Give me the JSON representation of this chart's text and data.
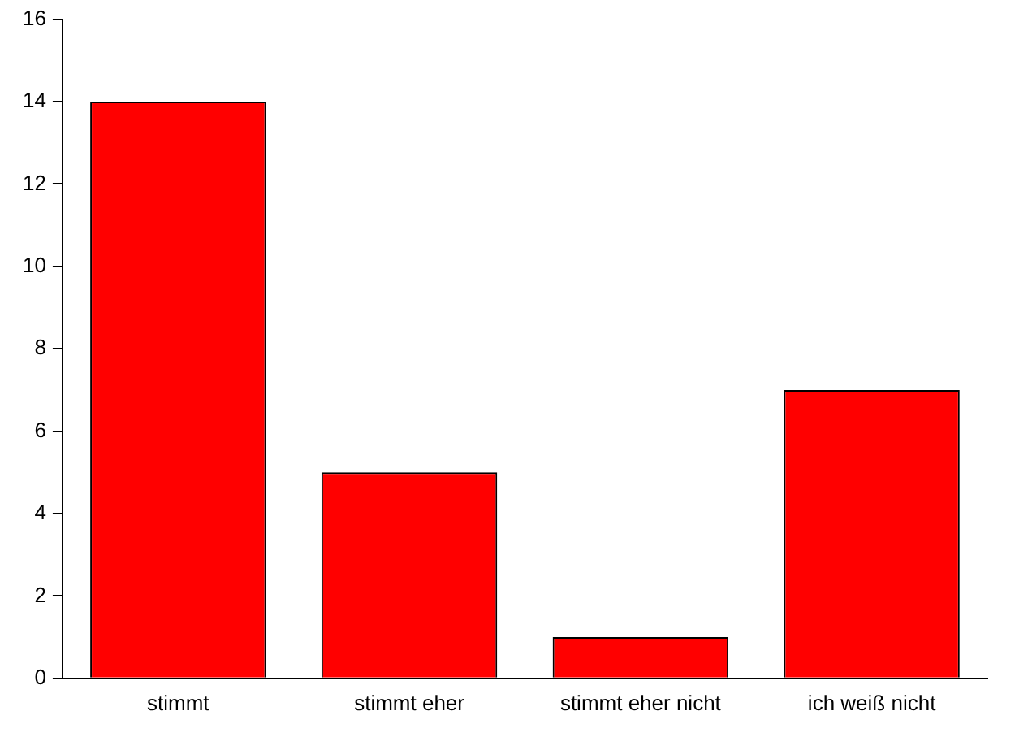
{
  "chart_data": {
    "type": "bar",
    "categories": [
      "stimmt",
      "stimmt eher",
      "stimmt eher nicht",
      "ich weiß nicht"
    ],
    "values": [
      14,
      5,
      1,
      7
    ],
    "color": "#ff0000",
    "ylim": [
      0,
      16
    ],
    "yticks": [
      0,
      2,
      4,
      6,
      8,
      10,
      12,
      14,
      16
    ],
    "grid": false,
    "legend": false
  }
}
